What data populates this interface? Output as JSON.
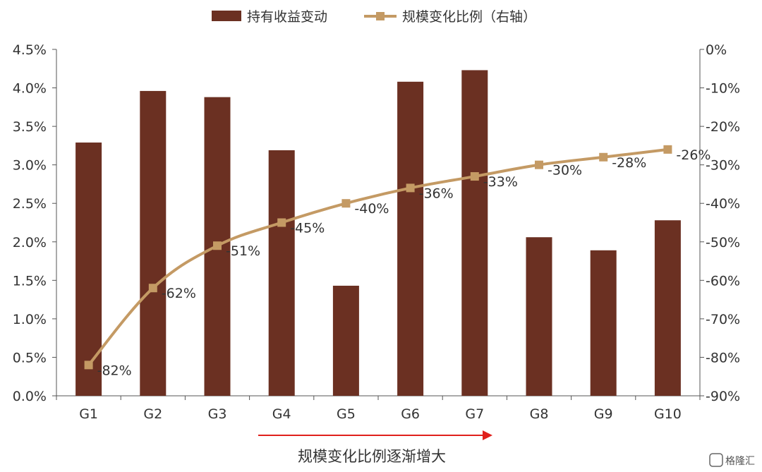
{
  "chart_data": {
    "type": "bar",
    "categories": [
      "G1",
      "G2",
      "G3",
      "G4",
      "G5",
      "G6",
      "G7",
      "G8",
      "G9",
      "G10"
    ],
    "series": [
      {
        "name": "持有收益变动",
        "kind": "bar",
        "axis": "left",
        "color": "#6b3022",
        "values": [
          3.29,
          3.96,
          3.88,
          3.19,
          1.43,
          4.08,
          4.23,
          2.06,
          1.89,
          2.28
        ]
      },
      {
        "name": "规模变化比例（右轴）",
        "kind": "line",
        "axis": "right",
        "color": "#c49a64",
        "marker": "square",
        "values": [
          -82,
          -62,
          -51,
          -45,
          -40,
          -36,
          -33,
          -30,
          -28,
          -26
        ],
        "labels": [
          "-82%",
          "-62%",
          "-51%",
          "-45%",
          "-40%",
          "-36%",
          "-33%",
          "-30%",
          "-28%",
          "-26%"
        ]
      }
    ],
    "left_axis": {
      "ylim": [
        0,
        4.5
      ],
      "ticks": [
        "0.0%",
        "0.5%",
        "1.0%",
        "1.5%",
        "2.0%",
        "2.5%",
        "3.0%",
        "3.5%",
        "4.0%",
        "4.5%"
      ]
    },
    "right_axis": {
      "ylim": [
        -90,
        0
      ],
      "ticks": [
        "-90%",
        "-80%",
        "-70%",
        "-60%",
        "-50%",
        "-40%",
        "-30%",
        "-20%",
        "-10%",
        "0%"
      ]
    },
    "xlabel": "规模变化比例逐渐增大",
    "arrow_color": "#e0201c",
    "legend_position": "top",
    "grid": false
  },
  "watermark": "格隆汇"
}
